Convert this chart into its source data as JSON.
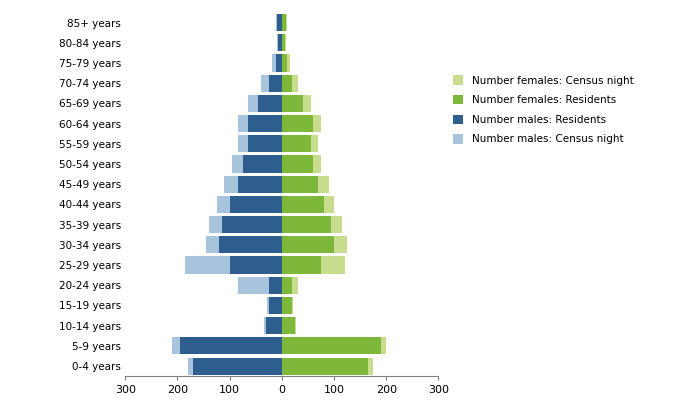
{
  "age_groups": [
    "0-4 years",
    "5-9 years",
    "10-14 years",
    "15-19 years",
    "20-24 years",
    "25-29 years",
    "30-34 years",
    "35-39 years",
    "40-44 years",
    "45-49 years",
    "50-54 years",
    "55-59 years",
    "60-64 years",
    "65-69 years",
    "70-74 years",
    "75-79 years",
    "80-84 years",
    "85+ years"
  ],
  "males_residents": [
    170,
    195,
    30,
    25,
    25,
    100,
    120,
    115,
    100,
    85,
    75,
    65,
    65,
    45,
    25,
    12,
    8,
    10
  ],
  "males_census_night": [
    180,
    210,
    35,
    28,
    85,
    185,
    145,
    140,
    125,
    110,
    95,
    85,
    85,
    65,
    40,
    18,
    10,
    12
  ],
  "females_residents": [
    165,
    190,
    25,
    20,
    20,
    75,
    100,
    95,
    80,
    70,
    60,
    55,
    60,
    40,
    20,
    10,
    6,
    8
  ],
  "females_census_night": [
    175,
    200,
    28,
    22,
    30,
    120,
    125,
    115,
    100,
    90,
    75,
    70,
    75,
    55,
    30,
    15,
    8,
    10
  ],
  "color_males_residents": "#2E5E8E",
  "color_males_census_night": "#A8C4DC",
  "color_females_residents": "#7DB83A",
  "color_females_census_night": "#C8DC8E",
  "xlim": 300,
  "tick_positions": [
    -300,
    -200,
    -100,
    0,
    100,
    200,
    300
  ],
  "tick_labels": [
    "300",
    "200",
    "100",
    "0",
    "100",
    "200",
    "300"
  ]
}
